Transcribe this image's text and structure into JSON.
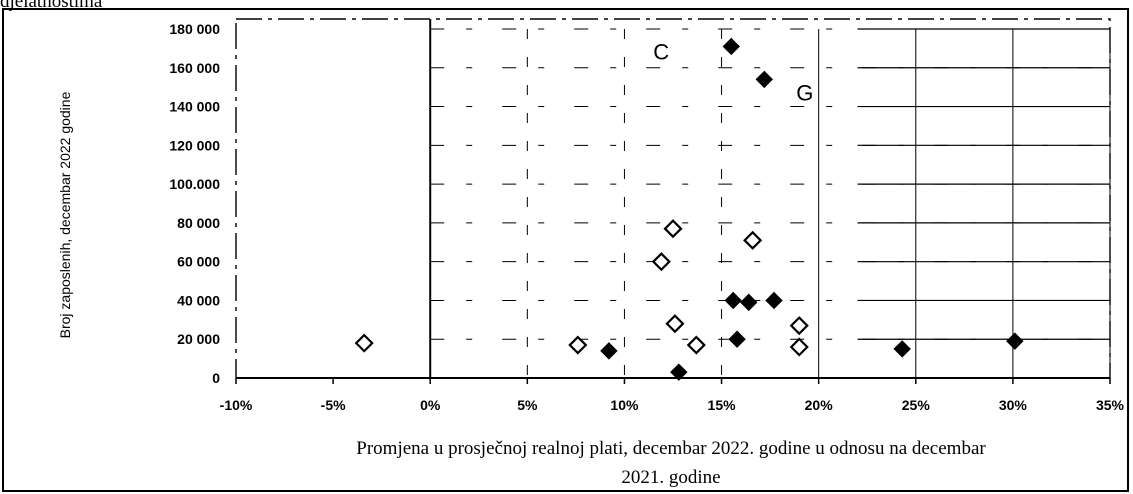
{
  "page": {
    "cut_text": "djelatnostima"
  },
  "chart_data": {
    "type": "scatter",
    "xlabel_line1": "Promjena u  prosječnoj realnoj plati, decembar 2022. godine u odnosu na decembar",
    "xlabel_line2": "2021. godine",
    "ylabel": "Broj zaposlenih, decembar 2022  godine",
    "xlim": [
      -10,
      35
    ],
    "ylim": [
      0,
      180000
    ],
    "x_ticks": [
      -10,
      -5,
      0,
      5,
      10,
      15,
      20,
      25,
      30,
      35
    ],
    "x_tick_labels": [
      "-10%",
      "-5%",
      "0%",
      "5%",
      "10%",
      "15%",
      "20%",
      "25%",
      "30%",
      "35%"
    ],
    "y_ticks": [
      0,
      20000,
      40000,
      60000,
      80000,
      100000,
      120000,
      140000,
      160000,
      180000
    ],
    "y_tick_labels": [
      "0",
      "20 000",
      "40 000",
      "60 000",
      "80 000",
      "100.000",
      "120 000",
      "140 000",
      "160 000",
      "180 000"
    ],
    "series": [
      {
        "marker": "filled-diamond",
        "color": "#000000",
        "points": [
          {
            "x": 15.5,
            "y": 171000,
            "label": "C"
          },
          {
            "x": 17.2,
            "y": 154000,
            "label": "G"
          },
          {
            "x": 15.6,
            "y": 40000
          },
          {
            "x": 16.4,
            "y": 39000
          },
          {
            "x": 17.7,
            "y": 40000
          },
          {
            "x": 15.8,
            "y": 20000
          },
          {
            "x": 9.2,
            "y": 14000
          },
          {
            "x": 12.8,
            "y": 3000
          },
          {
            "x": 24.3,
            "y": 15000
          },
          {
            "x": 30.1,
            "y": 19000
          }
        ]
      },
      {
        "marker": "hollow-diamond",
        "color": "#000000",
        "points": [
          {
            "x": 12.5,
            "y": 77000
          },
          {
            "x": 16.6,
            "y": 71000
          },
          {
            "x": 11.9,
            "y": 60000
          },
          {
            "x": 12.6,
            "y": 28000
          },
          {
            "x": 19.0,
            "y": 27000
          },
          {
            "x": -3.4,
            "y": 18000
          },
          {
            "x": 7.6,
            "y": 17000
          },
          {
            "x": 13.7,
            "y": 17000
          },
          {
            "x": 19.0,
            "y": 16000
          }
        ]
      }
    ],
    "grid": "partial horizontal and vertical lines",
    "vertical_reference_line_x": 0
  }
}
